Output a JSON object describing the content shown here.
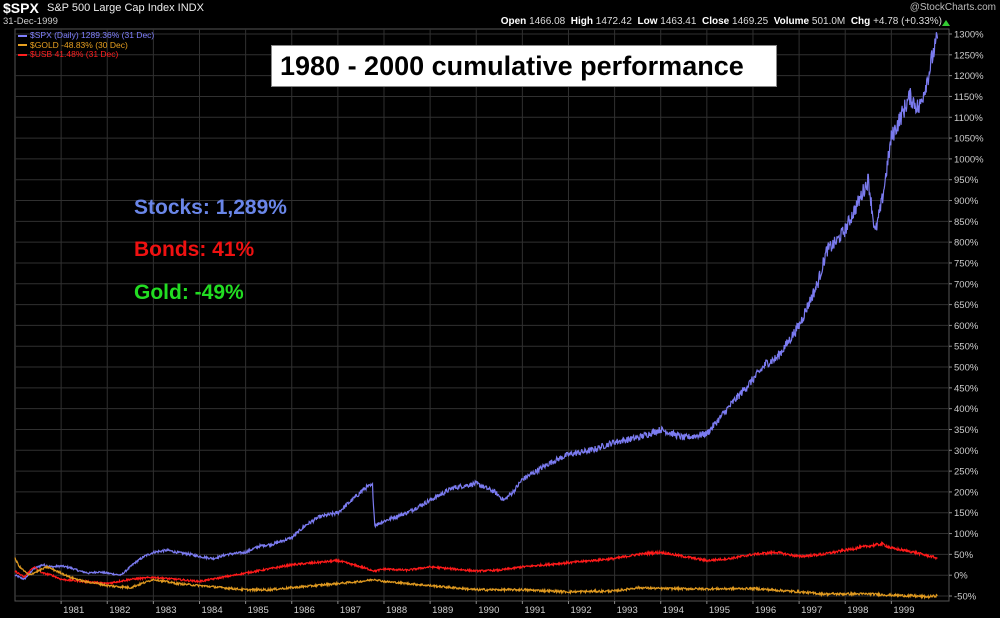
{
  "header": {
    "symbol": "$SPX",
    "description": "S&P 500 Large Cap Index  INDX",
    "date": "31-Dec-1999",
    "watermark": "@StockCharts.com",
    "open_label": "Open",
    "open_value": "1466.08",
    "high_label": "High",
    "high_value": "1472.42",
    "low_label": "Low",
    "low_value": "1463.41",
    "close_label": "Close",
    "close_value": "1469.25",
    "volume_label": "Volume",
    "volume_value": "501.0M",
    "chg_label": "Chg",
    "chg_value": "+4.78 (+0.33%)",
    "chg_color": "#33cc33"
  },
  "legend": [
    {
      "text": "$SPX (Daily) 1289.36% (31 Dec)",
      "color": "#8080ff"
    },
    {
      "text": "$GOLD -48.83% (30 Dec)",
      "color": "#e8a020"
    },
    {
      "text": "$USB 41.48% (31 Dec)",
      "color": "#ff2020"
    }
  ],
  "annotations": {
    "title": "1980 - 2000 cumulative performance",
    "stocks": {
      "text": "Stocks: 1,289%",
      "color": "#6a86e8"
    },
    "bonds": {
      "text": "Bonds: 41%",
      "color": "#ee1111"
    },
    "gold": {
      "text": "Gold: -49%",
      "color": "#22dd22"
    }
  },
  "chart_data": {
    "type": "line",
    "xlim": [
      1980,
      2000
    ],
    "ylim": [
      -50,
      1300
    ],
    "y_axis_side": "right",
    "y_unit": "%",
    "x_ticks": [
      "1981",
      "1982",
      "1983",
      "1984",
      "1985",
      "1986",
      "1987",
      "1988",
      "1989",
      "1990",
      "1991",
      "1992",
      "1993",
      "1994",
      "1995",
      "1996",
      "1997",
      "1998",
      "1999"
    ],
    "y_ticks": [
      -50,
      0,
      50,
      100,
      150,
      200,
      250,
      300,
      350,
      400,
      450,
      500,
      550,
      600,
      650,
      700,
      750,
      800,
      850,
      900,
      950,
      1000,
      1050,
      1100,
      1150,
      1200,
      1250,
      1300
    ],
    "grid": true,
    "background": "#000000",
    "grid_color": "#303030",
    "series": [
      {
        "name": "$SPX",
        "color": "#7b7bf0",
        "x": [
          1980.0,
          1980.2,
          1980.4,
          1980.6,
          1980.8,
          1981.0,
          1981.2,
          1981.4,
          1981.6,
          1981.8,
          1982.0,
          1982.3,
          1982.6,
          1982.8,
          1983.0,
          1983.3,
          1983.5,
          1983.8,
          1984.0,
          1984.3,
          1984.6,
          1985.0,
          1985.3,
          1985.6,
          1986.0,
          1986.3,
          1986.6,
          1987.0,
          1987.3,
          1987.6,
          1987.75,
          1987.8,
          1988.0,
          1988.5,
          1989.0,
          1989.5,
          1990.0,
          1990.4,
          1990.6,
          1990.8,
          1991.0,
          1991.3,
          1991.6,
          1992.0,
          1992.5,
          1993.0,
          1993.5,
          1994.0,
          1994.5,
          1995.0,
          1995.3,
          1995.6,
          1996.0,
          1996.3,
          1996.5,
          1996.7,
          1997.0,
          1997.2,
          1997.4,
          1997.6,
          1997.8,
          1998.0,
          1998.3,
          1998.5,
          1998.65,
          1998.8,
          1999.0,
          1999.2,
          1999.4,
          1999.6,
          1999.8,
          1999.9,
          2000.0
        ],
        "y": [
          0,
          -10,
          15,
          25,
          20,
          22,
          18,
          10,
          5,
          8,
          5,
          0,
          30,
          45,
          55,
          60,
          55,
          50,
          45,
          40,
          50,
          55,
          70,
          75,
          90,
          120,
          140,
          150,
          180,
          210,
          215,
          120,
          130,
          150,
          180,
          210,
          220,
          200,
          180,
          200,
          230,
          250,
          270,
          290,
          300,
          320,
          330,
          350,
          330,
          340,
          380,
          420,
          470,
          510,
          520,
          550,
          600,
          650,
          700,
          780,
          800,
          830,
          900,
          950,
          820,
          900,
          1050,
          1100,
          1150,
          1120,
          1200,
          1250,
          1289
        ]
      },
      {
        "name": "$USB",
        "color": "#ff1a1a",
        "x": [
          1980.0,
          1980.2,
          1980.4,
          1980.6,
          1980.8,
          1981.0,
          1981.5,
          1982.0,
          1982.5,
          1983.0,
          1983.5,
          1984.0,
          1984.5,
          1985.0,
          1985.5,
          1986.0,
          1986.5,
          1987.0,
          1987.5,
          1987.8,
          1988.0,
          1988.5,
          1989.0,
          1989.5,
          1990.0,
          1990.5,
          1991.0,
          1991.5,
          1992.0,
          1992.5,
          1993.0,
          1993.5,
          1994.0,
          1994.5,
          1995.0,
          1995.5,
          1996.0,
          1996.5,
          1997.0,
          1997.5,
          1998.0,
          1998.5,
          1998.8,
          1999.0,
          1999.5,
          2000.0
        ],
        "y": [
          10,
          -5,
          20,
          5,
          0,
          -10,
          -15,
          -20,
          -10,
          -5,
          -10,
          -15,
          -5,
          5,
          15,
          25,
          30,
          35,
          20,
          10,
          15,
          12,
          20,
          15,
          10,
          12,
          20,
          25,
          30,
          35,
          40,
          50,
          55,
          45,
          35,
          40,
          50,
          55,
          45,
          50,
          60,
          70,
          75,
          65,
          55,
          41
        ]
      },
      {
        "name": "$GOLD",
        "color": "#e09a20",
        "x": [
          1980.0,
          1980.1,
          1980.3,
          1980.5,
          1980.7,
          1980.9,
          1981.2,
          1981.5,
          1981.8,
          1982.0,
          1982.5,
          1983.0,
          1983.5,
          1984.0,
          1984.5,
          1985.0,
          1985.5,
          1986.0,
          1986.5,
          1987.0,
          1987.5,
          1987.8,
          1988.0,
          1988.5,
          1989.0,
          1989.5,
          1990.0,
          1991.0,
          1992.0,
          1993.0,
          1993.5,
          1994.0,
          1995.0,
          1996.0,
          1997.0,
          1997.5,
          1998.0,
          1998.5,
          1999.0,
          1999.5,
          1999.8,
          2000.0
        ],
        "y": [
          40,
          20,
          0,
          10,
          20,
          10,
          -5,
          -15,
          -20,
          -25,
          -30,
          -10,
          -20,
          -25,
          -30,
          -35,
          -35,
          -30,
          -25,
          -20,
          -15,
          -10,
          -15,
          -20,
          -25,
          -30,
          -35,
          -35,
          -40,
          -38,
          -30,
          -32,
          -33,
          -32,
          -40,
          -45,
          -45,
          -45,
          -48,
          -50,
          -52,
          -49
        ]
      }
    ]
  }
}
